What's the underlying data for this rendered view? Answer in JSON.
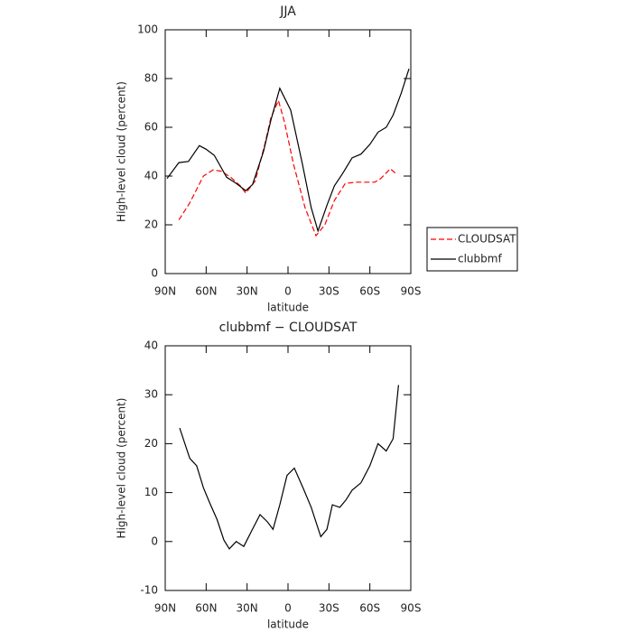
{
  "chart_data": [
    {
      "type": "line",
      "title": "JJA",
      "xlabel": "latitude",
      "ylabel": "High-level cloud (percent)",
      "xlim": [
        90,
        -90
      ],
      "ylim": [
        0,
        100
      ],
      "xticks": [
        {
          "value": 90,
          "label": "90N"
        },
        {
          "value": 60,
          "label": "60N"
        },
        {
          "value": 30,
          "label": "30N"
        },
        0,
        {
          "value": -30,
          "label": "30S"
        },
        {
          "value": -60,
          "label": "60S"
        },
        {
          "value": -90,
          "label": "90S"
        }
      ],
      "yticks": [
        0,
        20,
        40,
        60,
        80,
        100
      ],
      "legend": "outside-right",
      "series": [
        {
          "name": "CLOUDSAT",
          "color": "#ff0000",
          "dash": "dashed",
          "x": [
            80,
            72,
            62,
            55,
            49,
            42,
            35,
            31,
            24,
            17,
            12.5,
            7,
            2.5,
            -4,
            -12.5,
            -20.5,
            -27,
            -34,
            -42,
            -50,
            -63.5,
            -68,
            -75,
            -80
          ],
          "values": [
            22,
            29,
            40,
            42.5,
            42,
            39.5,
            36,
            33,
            38,
            53,
            64,
            71,
            62,
            45,
            27,
            15.5,
            20,
            30,
            37,
            37.5,
            37.5,
            39,
            43,
            40.5
          ]
        },
        {
          "name": "clubbmf",
          "color": "#000000",
          "dash": "solid",
          "x": [
            88.7,
            80,
            73,
            65,
            60,
            54,
            45,
            38,
            31,
            26,
            18,
            12.5,
            6,
            -2,
            -10.5,
            -17,
            -22,
            -28.5,
            -34,
            -40,
            -47,
            -53.5,
            -60,
            -66,
            -72,
            -77,
            -83,
            -88.7
          ],
          "values": [
            39,
            45.5,
            46,
            52.5,
            51,
            48.5,
            39.5,
            37,
            34,
            36.5,
            50,
            63,
            76,
            67,
            45,
            27,
            17.5,
            28,
            36,
            41,
            47.5,
            49,
            53,
            58,
            60,
            65,
            74,
            84
          ]
        }
      ]
    },
    {
      "type": "line",
      "title": "clubbmf − CLOUDSAT",
      "xlabel": "latitude",
      "ylabel": "High-level cloud (percent)",
      "xlim": [
        90,
        -90
      ],
      "ylim": [
        -10,
        40
      ],
      "xticks": [
        {
          "value": 90,
          "label": "90N"
        },
        {
          "value": 60,
          "label": "60N"
        },
        {
          "value": 30,
          "label": "30N"
        },
        0,
        {
          "value": -30,
          "label": "30S"
        },
        {
          "value": -60,
          "label": "60S"
        },
        {
          "value": -90,
          "label": "90S"
        }
      ],
      "yticks": [
        -10,
        0,
        10,
        20,
        30,
        40
      ],
      "color": "#000000",
      "x": [
        79.4,
        72,
        67,
        62,
        57.6,
        52,
        47,
        43,
        38,
        32.4,
        27,
        20.5,
        15,
        11,
        6,
        0.7,
        -4.6,
        -11,
        -17,
        -24,
        -28.5,
        -32.5,
        -38,
        -42.5,
        -47,
        -53.5,
        -60,
        -66,
        -72,
        -77,
        -81
      ],
      "values": [
        23.2,
        17,
        15.5,
        11,
        8,
        4.5,
        0.3,
        -1.5,
        0,
        -1,
        2,
        5.5,
        4,
        2.5,
        7.5,
        13.5,
        15,
        11,
        7,
        1,
        2.5,
        7.5,
        7,
        8.5,
        10.5,
        12,
        15.5,
        20,
        18.5,
        21,
        32
      ]
    }
  ]
}
